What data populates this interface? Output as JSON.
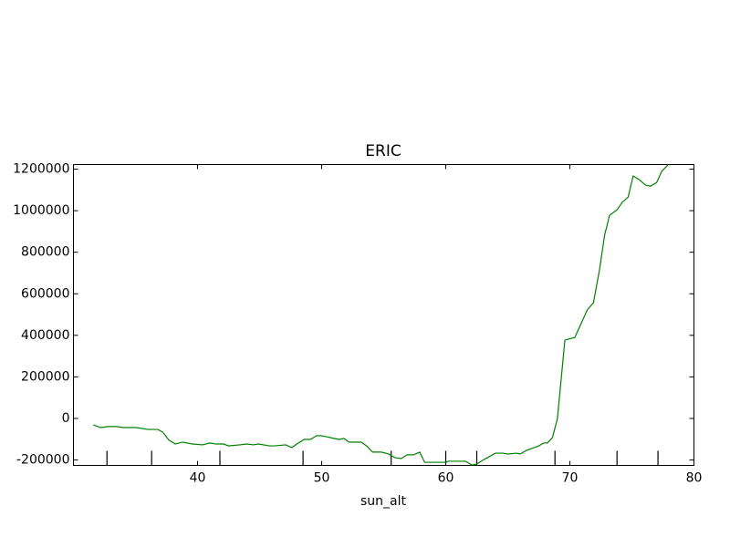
{
  "chart_data": {
    "type": "line",
    "title": "ERIC",
    "x_label": "sun_alt",
    "x": [
      31.6,
      32.2,
      32.8,
      33.5,
      34.0,
      35.1,
      36.0,
      36.8,
      37.2,
      37.7,
      38.2,
      38.8,
      39.6,
      40.4,
      41.0,
      41.5,
      42.1,
      42.5,
      43.4,
      44.0,
      44.5,
      44.9,
      45.8,
      46.2,
      47.1,
      47.6,
      48.0,
      48.6,
      49.1,
      49.6,
      49.9,
      50.4,
      51.0,
      51.4,
      51.8,
      52.2,
      53.2,
      53.7,
      54.1,
      54.8,
      55.4,
      55.9,
      56.4,
      56.9,
      57.4,
      57.9,
      58.3,
      59.1,
      60.0,
      60.2,
      61.0,
      61.6,
      62.1,
      62.5,
      63.1,
      63.5,
      64.0,
      64.6,
      65.0,
      65.7,
      66.0,
      66.5,
      66.9,
      67.5,
      67.9,
      68.2,
      68.6,
      69.0,
      69.6,
      70.4,
      71.0,
      71.4,
      71.9,
      72.4,
      72.8,
      73.2,
      73.8,
      74.2,
      74.7,
      75.1,
      75.6,
      76.1,
      76.5,
      77.0,
      77.4,
      77.9
    ],
    "series": [
      {
        "name": "ERIC",
        "color": "#008000",
        "values": [
          -31000,
          -44000,
          -39000,
          -39000,
          -44000,
          -44000,
          -53000,
          -53000,
          -66000,
          -105000,
          -123000,
          -114000,
          -123000,
          -127000,
          -118000,
          -123000,
          -123000,
          -132000,
          -127000,
          -123000,
          -127000,
          -123000,
          -132000,
          -132000,
          -127000,
          -140000,
          -123000,
          -101000,
          -101000,
          -83000,
          -83000,
          -88000,
          -96000,
          -101000,
          -96000,
          -114000,
          -114000,
          -136000,
          -162000,
          -162000,
          -171000,
          -189000,
          -193000,
          -175000,
          -175000,
          -162000,
          -211000,
          -211000,
          -211000,
          -206000,
          -206000,
          -206000,
          -224000,
          -219000,
          -197000,
          -184000,
          -167000,
          -167000,
          -171000,
          -167000,
          -171000,
          -154000,
          -145000,
          -132000,
          -118000,
          -118000,
          -92000,
          0,
          377000,
          390000,
          469000,
          522000,
          557000,
          719000,
          882000,
          978000,
          1004000,
          1039000,
          1066000,
          1167000,
          1149000,
          1123000,
          1118000,
          1136000,
          1189000,
          1220000
        ]
      }
    ],
    "rug_x": [
      32.7,
      36.3,
      41.8,
      48.5,
      55.6,
      60.0,
      62.5,
      68.8,
      73.8,
      77.1
    ],
    "xlim": [
      30,
      80
    ],
    "xticks": [
      40,
      50,
      60,
      70,
      80
    ],
    "ylim": [
      -226000,
      1222000
    ],
    "yticks": [
      -200000,
      0,
      200000,
      400000,
      600000,
      800000,
      1000000,
      1200000
    ]
  }
}
